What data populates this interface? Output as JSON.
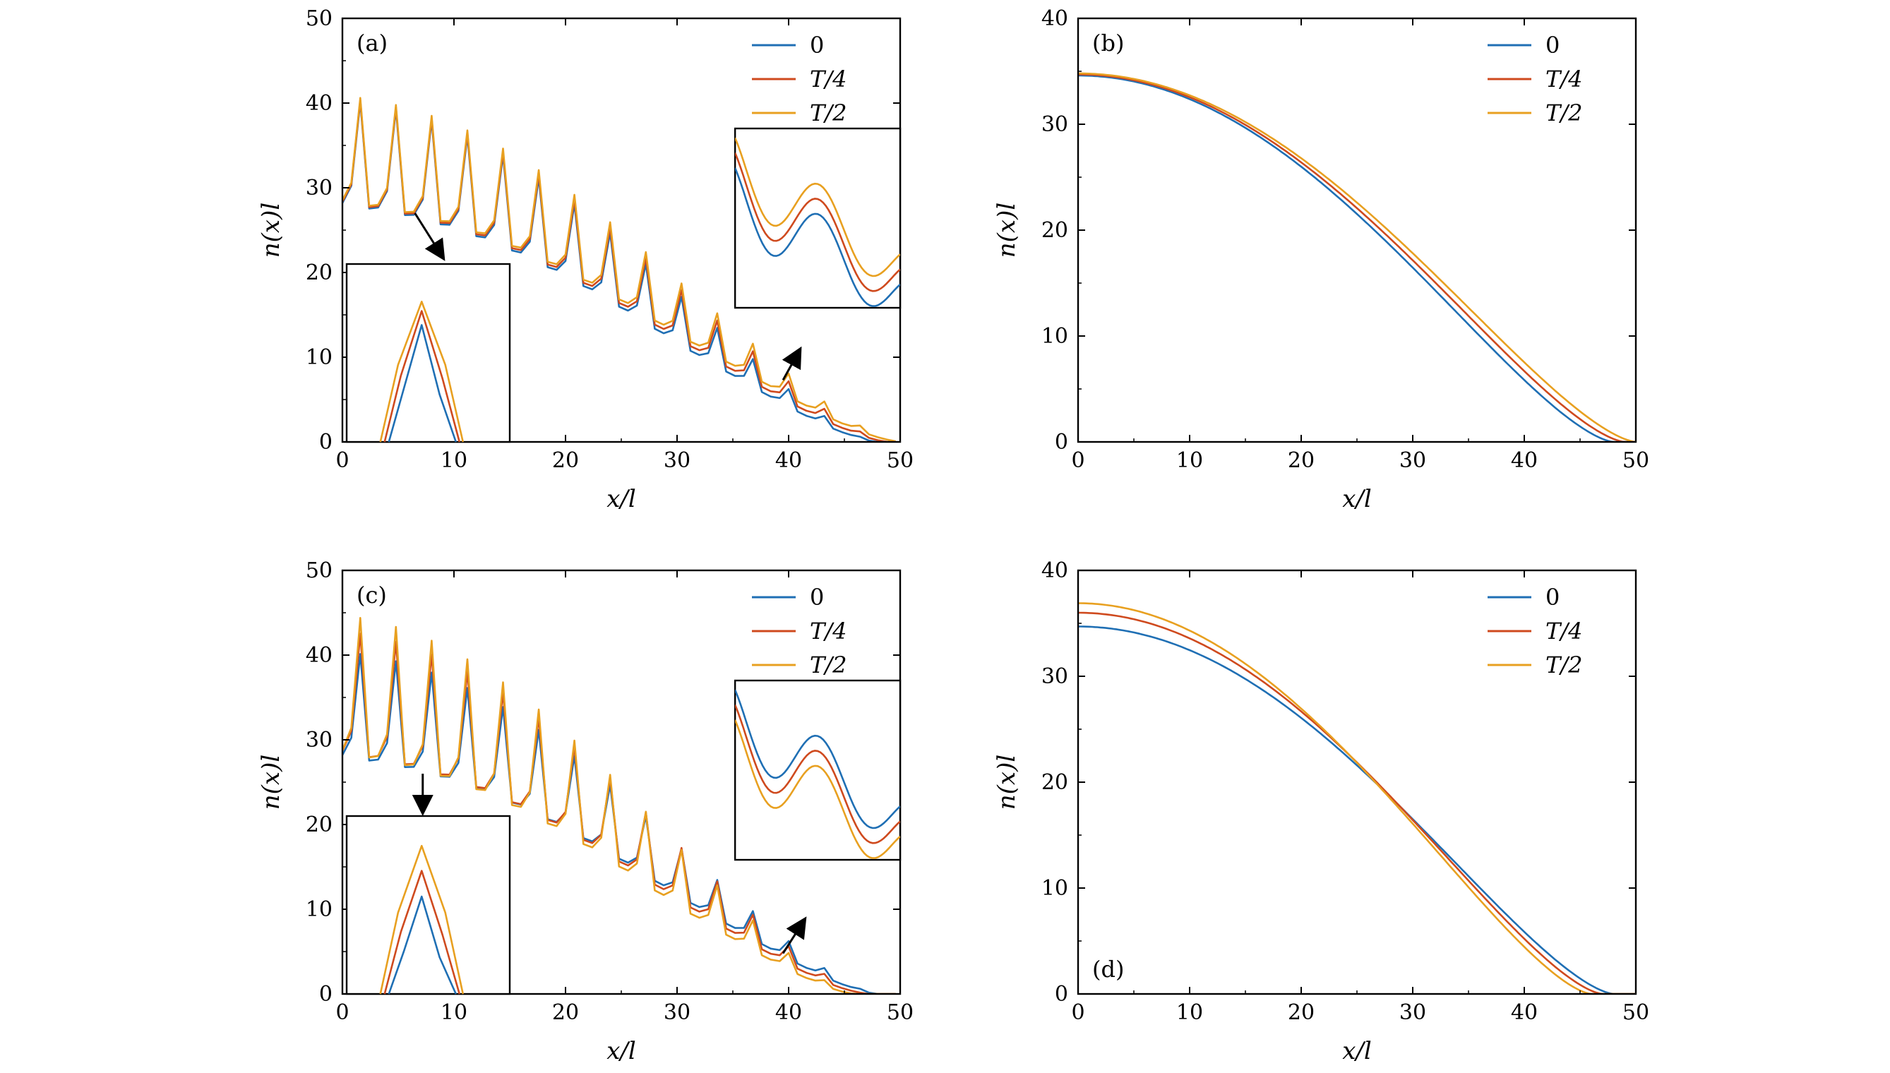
{
  "figure": {
    "colors": {
      "s0": "#1f6fb4",
      "s1": "#cf4a1e",
      "s2": "#e8a020",
      "frame": "#000000"
    },
    "legend_labels": [
      "0",
      "T/4",
      "T/2"
    ]
  },
  "chart_data": [
    {
      "id": "a",
      "type": "line",
      "panel_label": "(a)",
      "xlabel": "x/l",
      "ylabel": "n(x)l",
      "xlim": [
        0,
        50
      ],
      "ylim": [
        0,
        50
      ],
      "xticks": [
        0,
        10,
        20,
        30,
        40,
        50
      ],
      "yticks": [
        0,
        10,
        20,
        30,
        40,
        50
      ],
      "legend": "top-right",
      "oscillating": true,
      "series": [
        {
          "name": "0",
          "params": {
            "A": 34.5,
            "R": 48,
            "w": 0.5,
            "a": 0.18
          }
        },
        {
          "name": "T/4",
          "params": {
            "A": 34.7,
            "R": 49,
            "w": 0.5,
            "a": 0.18
          }
        },
        {
          "name": "T/2",
          "params": {
            "A": 34.9,
            "R": 50,
            "w": 0.5,
            "a": 0.18
          }
        }
      ],
      "insets": [
        {
          "position": "lower-left",
          "region": "x 5.8–7.6",
          "series_peaks": [
            15.0,
            16.8,
            18.0
          ]
        },
        {
          "position": "right",
          "region": "x 35–45",
          "series_offsets": [
            0,
            1.2,
            2.4
          ]
        }
      ]
    },
    {
      "id": "b",
      "type": "line",
      "panel_label": "(b)",
      "xlabel": "x/l",
      "ylabel": "n(x)l",
      "xlim": [
        0,
        50
      ],
      "ylim": [
        0,
        40
      ],
      "xticks": [
        0,
        10,
        20,
        30,
        40,
        50
      ],
      "yticks": [
        0,
        10,
        20,
        30,
        40
      ],
      "legend": "top-right",
      "oscillating": false,
      "series": [
        {
          "name": "0",
          "params": {
            "A": 34.6,
            "R": 48,
            "w": 0.5
          }
        },
        {
          "name": "T/4",
          "params": {
            "A": 34.7,
            "R": 49,
            "w": 0.5
          }
        },
        {
          "name": "T/2",
          "params": {
            "A": 34.8,
            "R": 50,
            "w": 0.5
          }
        }
      ]
    },
    {
      "id": "c",
      "type": "line",
      "panel_label": "(c)",
      "xlabel": "x/l",
      "ylabel": "n(x)l",
      "xlim": [
        0,
        50
      ],
      "ylim": [
        0,
        50
      ],
      "xticks": [
        0,
        10,
        20,
        30,
        40,
        50
      ],
      "yticks": [
        0,
        10,
        20,
        30,
        40,
        50
      ],
      "legend": "top-right",
      "oscillating": true,
      "series": [
        {
          "name": "0",
          "params": {
            "A": 34.5,
            "R": 48,
            "w": 0.5,
            "a": 0.18
          }
        },
        {
          "name": "T/4",
          "params": {
            "A": 36.0,
            "R": 47,
            "w": 0.5,
            "a": 0.2
          }
        },
        {
          "name": "T/2",
          "params": {
            "A": 37.0,
            "R": 46,
            "w": 0.5,
            "a": 0.22
          }
        }
      ],
      "insets": [
        {
          "position": "lower-left",
          "region": "x 5.8–7.6",
          "series_peaks": [
            12.5,
            15.8,
            19.0
          ]
        },
        {
          "position": "right",
          "region": "x 35–45",
          "series_offsets": [
            2.4,
            1.2,
            0
          ]
        }
      ]
    },
    {
      "id": "d",
      "type": "line",
      "panel_label": "(d)",
      "xlabel": "x/l",
      "ylabel": "n(x)l",
      "xlim": [
        0,
        50
      ],
      "ylim": [
        0,
        40
      ],
      "xticks": [
        0,
        10,
        20,
        30,
        40,
        50
      ],
      "yticks": [
        0,
        10,
        20,
        30,
        40
      ],
      "legend": "top-right",
      "oscillating": false,
      "series": [
        {
          "name": "0",
          "params": {
            "A": 34.7,
            "R": 48,
            "w": 0.5
          }
        },
        {
          "name": "T/4",
          "params": {
            "A": 36.0,
            "R": 47,
            "w": 0.5
          }
        },
        {
          "name": "T/2",
          "params": {
            "A": 36.9,
            "R": 46,
            "w": 0.5
          }
        }
      ]
    }
  ]
}
